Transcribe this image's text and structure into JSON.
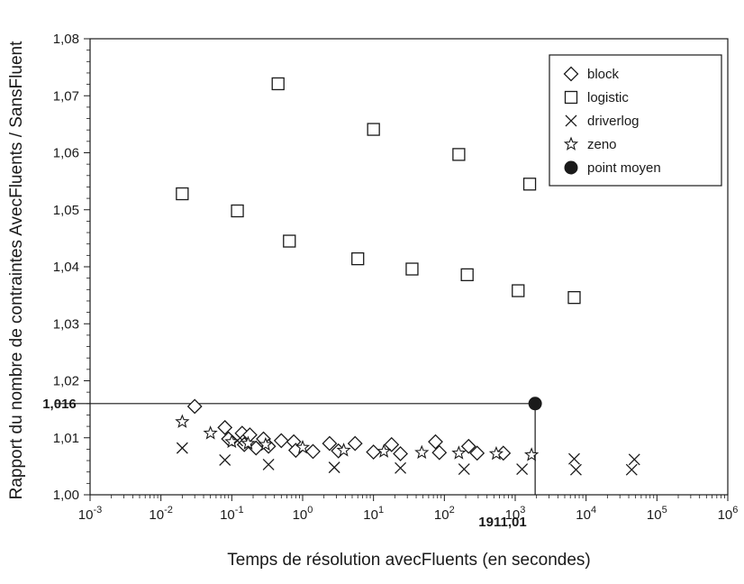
{
  "chart_data": {
    "type": "scatter",
    "xlabel": "Temps de résolution avecFluents (en secondes)",
    "ylabel": "Rapport du nombre de contraintes AvecFluents / SansFluent",
    "x_scale": "log",
    "xlim": [
      0.001,
      1000000
    ],
    "ylim": [
      1.0,
      1.08
    ],
    "x_ticks": [
      {
        "value": 0.001,
        "base": "10",
        "exp": "-3"
      },
      {
        "value": 0.01,
        "base": "10",
        "exp": "-2"
      },
      {
        "value": 0.1,
        "base": "10",
        "exp": "-1"
      },
      {
        "value": 1,
        "base": "10",
        "exp": "0"
      },
      {
        "value": 10,
        "base": "10",
        "exp": "1"
      },
      {
        "value": 100,
        "base": "10",
        "exp": "2"
      },
      {
        "value": 1000,
        "base": "10",
        "exp": "3"
      },
      {
        "value": 10000,
        "base": "10",
        "exp": "4"
      },
      {
        "value": 100000,
        "base": "10",
        "exp": "5"
      },
      {
        "value": 1000000,
        "base": "10",
        "exp": "6"
      }
    ],
    "y_ticks": [
      {
        "value": 1.0,
        "label": "1,00"
      },
      {
        "value": 1.01,
        "label": "1,01"
      },
      {
        "value": 1.02,
        "label": "1,02"
      },
      {
        "value": 1.03,
        "label": "1,03"
      },
      {
        "value": 1.04,
        "label": "1,04"
      },
      {
        "value": 1.05,
        "label": "1,05"
      },
      {
        "value": 1.06,
        "label": "1,06"
      },
      {
        "value": 1.07,
        "label": "1,07"
      },
      {
        "value": 1.08,
        "label": "1,08"
      }
    ],
    "grid": false,
    "legend_position": "top-right",
    "series": [
      {
        "name": "block",
        "marker": "diamond",
        "points": [
          [
            0.03,
            1.0155
          ],
          [
            0.08,
            1.0118
          ],
          [
            0.09,
            1.0098
          ],
          [
            0.14,
            1.0108
          ],
          [
            0.15,
            1.0088
          ],
          [
            0.18,
            1.0105
          ],
          [
            0.22,
            1.0082
          ],
          [
            0.28,
            1.0098
          ],
          [
            0.33,
            1.0085
          ],
          [
            0.5,
            1.0095
          ],
          [
            0.75,
            1.0093
          ],
          [
            0.8,
            1.0078
          ],
          [
            1.4,
            1.0076
          ],
          [
            2.4,
            1.009
          ],
          [
            3.2,
            1.0077
          ],
          [
            5.5,
            1.009
          ],
          [
            18,
            1.0088
          ],
          [
            10,
            1.0075
          ],
          [
            24,
            1.0072
          ],
          [
            75,
            1.0093
          ],
          [
            85,
            1.0074
          ],
          [
            220,
            1.0085
          ],
          [
            290,
            1.0073
          ],
          [
            680,
            1.0073
          ]
        ]
      },
      {
        "name": "logistic",
        "marker": "square",
        "points": [
          [
            0.02,
            1.0528
          ],
          [
            0.12,
            1.0498
          ],
          [
            0.45,
            1.0721
          ],
          [
            0.65,
            1.0445
          ],
          [
            6,
            1.0414
          ],
          [
            10,
            1.0641
          ],
          [
            35,
            1.0396
          ],
          [
            160,
            1.0597
          ],
          [
            210,
            1.0386
          ],
          [
            1100,
            1.0358
          ],
          [
            1600,
            1.0545
          ],
          [
            6800,
            1.0346
          ]
        ]
      },
      {
        "name": "driverlog",
        "marker": "cross",
        "points": [
          [
            0.02,
            1.0082
          ],
          [
            0.08,
            1.0061
          ],
          [
            0.12,
            1.0095
          ],
          [
            0.33,
            1.0053
          ],
          [
            2.8,
            1.0048
          ],
          [
            24,
            1.0047
          ],
          [
            190,
            1.0045
          ],
          [
            1250,
            1.0045
          ],
          [
            6800,
            1.0063
          ],
          [
            7200,
            1.0044
          ],
          [
            44000,
            1.0044
          ],
          [
            48000,
            1.0062
          ]
        ]
      },
      {
        "name": "zeno",
        "marker": "star",
        "points": [
          [
            0.02,
            1.0128
          ],
          [
            0.05,
            1.0108
          ],
          [
            0.1,
            1.0093
          ],
          [
            0.17,
            1.009
          ],
          [
            0.3,
            1.0088
          ],
          [
            1.0,
            1.0083
          ],
          [
            3.8,
            1.0078
          ],
          [
            14,
            1.0076
          ],
          [
            48,
            1.0074
          ],
          [
            160,
            1.0073
          ],
          [
            540,
            1.0072
          ],
          [
            1700,
            1.007
          ]
        ]
      },
      {
        "name": "point moyen",
        "marker": "filled-circle",
        "points": [
          [
            1911.01,
            1.016
          ]
        ]
      }
    ],
    "annotations": {
      "mean_x_label": "1911,01",
      "mean_y_label": "1,016",
      "mean_x": 1911.01,
      "mean_y": 1.016
    }
  }
}
